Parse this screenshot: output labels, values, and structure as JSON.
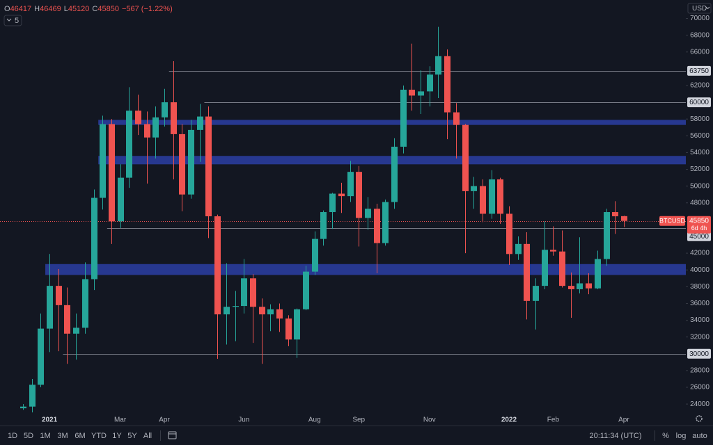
{
  "chart_data": {
    "type": "candlestick",
    "legend": {
      "items": [
        {
          "key": "O",
          "value": "46417"
        },
        {
          "key": "H",
          "value": "46469"
        },
        {
          "key": "L",
          "value": "45120"
        },
        {
          "key": "C",
          "value": "45850"
        }
      ],
      "change": "−567 (−1.22%)",
      "interval": "5"
    },
    "currency": "USD",
    "categories": [
      null,
      null,
      null,
      "2021",
      null,
      null,
      null,
      null,
      null,
      null,
      null,
      "Mar",
      null,
      null,
      null,
      null,
      "Apr",
      null,
      null,
      null,
      null,
      null,
      null,
      null,
      null,
      "Jun",
      null,
      null,
      null,
      null,
      null,
      null,
      null,
      "Aug",
      null,
      null,
      null,
      null,
      "Sep",
      null,
      null,
      null,
      null,
      null,
      null,
      null,
      "Nov",
      null,
      null,
      null,
      null,
      null,
      null,
      null,
      null,
      "2022",
      null,
      null,
      null,
      null,
      "Feb",
      null,
      null,
      null,
      null,
      null,
      null,
      null,
      "Apr"
    ],
    "open": [
      23500,
      23700,
      26300,
      33000,
      38100,
      35800,
      32400,
      33100,
      38900,
      48600,
      57400,
      45800,
      51000,
      59000,
      57400,
      55800,
      58200,
      60000,
      56200,
      49000,
      56700,
      58300,
      46400,
      34700,
      35600,
      35700,
      39000,
      35600,
      34700,
      35300,
      34200,
      31700,
      35300,
      39800,
      43700,
      46900,
      49100,
      48800,
      51700,
      46200,
      47300,
      43200,
      48100,
      54700,
      61500,
      60800,
      61300,
      63300,
      65500,
      58800,
      57300,
      49400,
      50000,
      46700,
      50800,
      46700,
      41900,
      43100,
      36300,
      38100,
      42400,
      42200,
      38100,
      37700,
      38400,
      37800,
      41300,
      46900,
      46417
    ],
    "high": [
      24000,
      27000,
      34800,
      41900,
      40100,
      37900,
      34800,
      40900,
      49600,
      58400,
      58000,
      52600,
      61800,
      60900,
      58900,
      59500,
      61600,
      64900,
      57400,
      57900,
      59800,
      59500,
      46600,
      40800,
      37500,
      41300,
      39500,
      36600,
      35900,
      36000,
      34600,
      35400,
      40500,
      44600,
      47100,
      49200,
      50400,
      53000,
      52400,
      48700,
      47900,
      48400,
      55700,
      62000,
      67000,
      63800,
      64300,
      69000,
      66300,
      59900,
      57400,
      51100,
      50800,
      51900,
      51000,
      47600,
      44000,
      44500,
      39000,
      45800,
      45200,
      44700,
      39700,
      43900,
      39600,
      42300,
      47300,
      48200,
      46469
    ],
    "low": [
      23300,
      23000,
      26000,
      30200,
      30300,
      28800,
      29300,
      32400,
      37600,
      47200,
      43100,
      45000,
      49800,
      56100,
      50300,
      53300,
      57100,
      50800,
      47000,
      48500,
      52900,
      43800,
      29400,
      31100,
      31500,
      34800,
      31300,
      28800,
      32700,
      32600,
      30900,
      29500,
      35200,
      39400,
      42900,
      44900,
      46800,
      48100,
      42800,
      44800,
      39600,
      42900,
      47300,
      53900,
      59000,
      58600,
      59500,
      60500,
      55600,
      53300,
      42000,
      47300,
      45700,
      46100,
      45500,
      40600,
      41200,
      34100,
      32900,
      37700,
      41700,
      37900,
      34300,
      37200,
      37100,
      37700,
      40500,
      44300,
      45120
    ],
    "close": [
      23700,
      26300,
      33000,
      38100,
      35800,
      32400,
      33100,
      38900,
      48600,
      57400,
      45800,
      51000,
      59000,
      57400,
      55800,
      58200,
      60000,
      56200,
      49000,
      56700,
      58300,
      46400,
      34700,
      35600,
      35700,
      39000,
      35600,
      34700,
      35300,
      34200,
      31700,
      35300,
      39800,
      43700,
      46900,
      49100,
      48800,
      51700,
      46200,
      47300,
      43200,
      48100,
      54700,
      61500,
      60800,
      61300,
      63300,
      65500,
      58800,
      57300,
      49400,
      50000,
      46700,
      50800,
      46700,
      41900,
      43100,
      36300,
      38100,
      42400,
      42200,
      38100,
      37700,
      38400,
      37800,
      41300,
      46900,
      46400,
      45850
    ],
    "up_color": "#26a69a",
    "down_color": "#ef5350",
    "ylim": [
      22600,
      72200
    ],
    "yticks": [
      24000,
      26000,
      28000,
      32000,
      34000,
      36000,
      38000,
      40000,
      42000,
      48000,
      50000,
      52000,
      54000,
      56000,
      58000,
      62000,
      66000,
      68000,
      70000
    ],
    "grid": false,
    "levels": [
      {
        "value": 63750,
        "from": 17
      },
      {
        "value": 60000,
        "from": 21
      },
      {
        "value": 45000,
        "from": 10
      },
      {
        "value": 30000,
        "from": 5
      }
    ],
    "zones": [
      {
        "from_value": 57300,
        "to_value": 57900,
        "start": 9
      },
      {
        "from_value": 52600,
        "to_value": 53600,
        "start": 9
      },
      {
        "from_value": 39400,
        "to_value": 40700,
        "start": 3
      }
    ],
    "zone_color": "#2a3c9c",
    "last_price": {
      "symbol": "BTCUSD",
      "value": 45850,
      "countdown": "6d 4h"
    }
  },
  "toolbar": {
    "ranges": [
      "1D",
      "5D",
      "1M",
      "3M",
      "6M",
      "YTD",
      "1Y",
      "5Y",
      "All"
    ],
    "clock": "20:11:34 (UTC)",
    "options": [
      "%",
      "log",
      "auto"
    ]
  }
}
